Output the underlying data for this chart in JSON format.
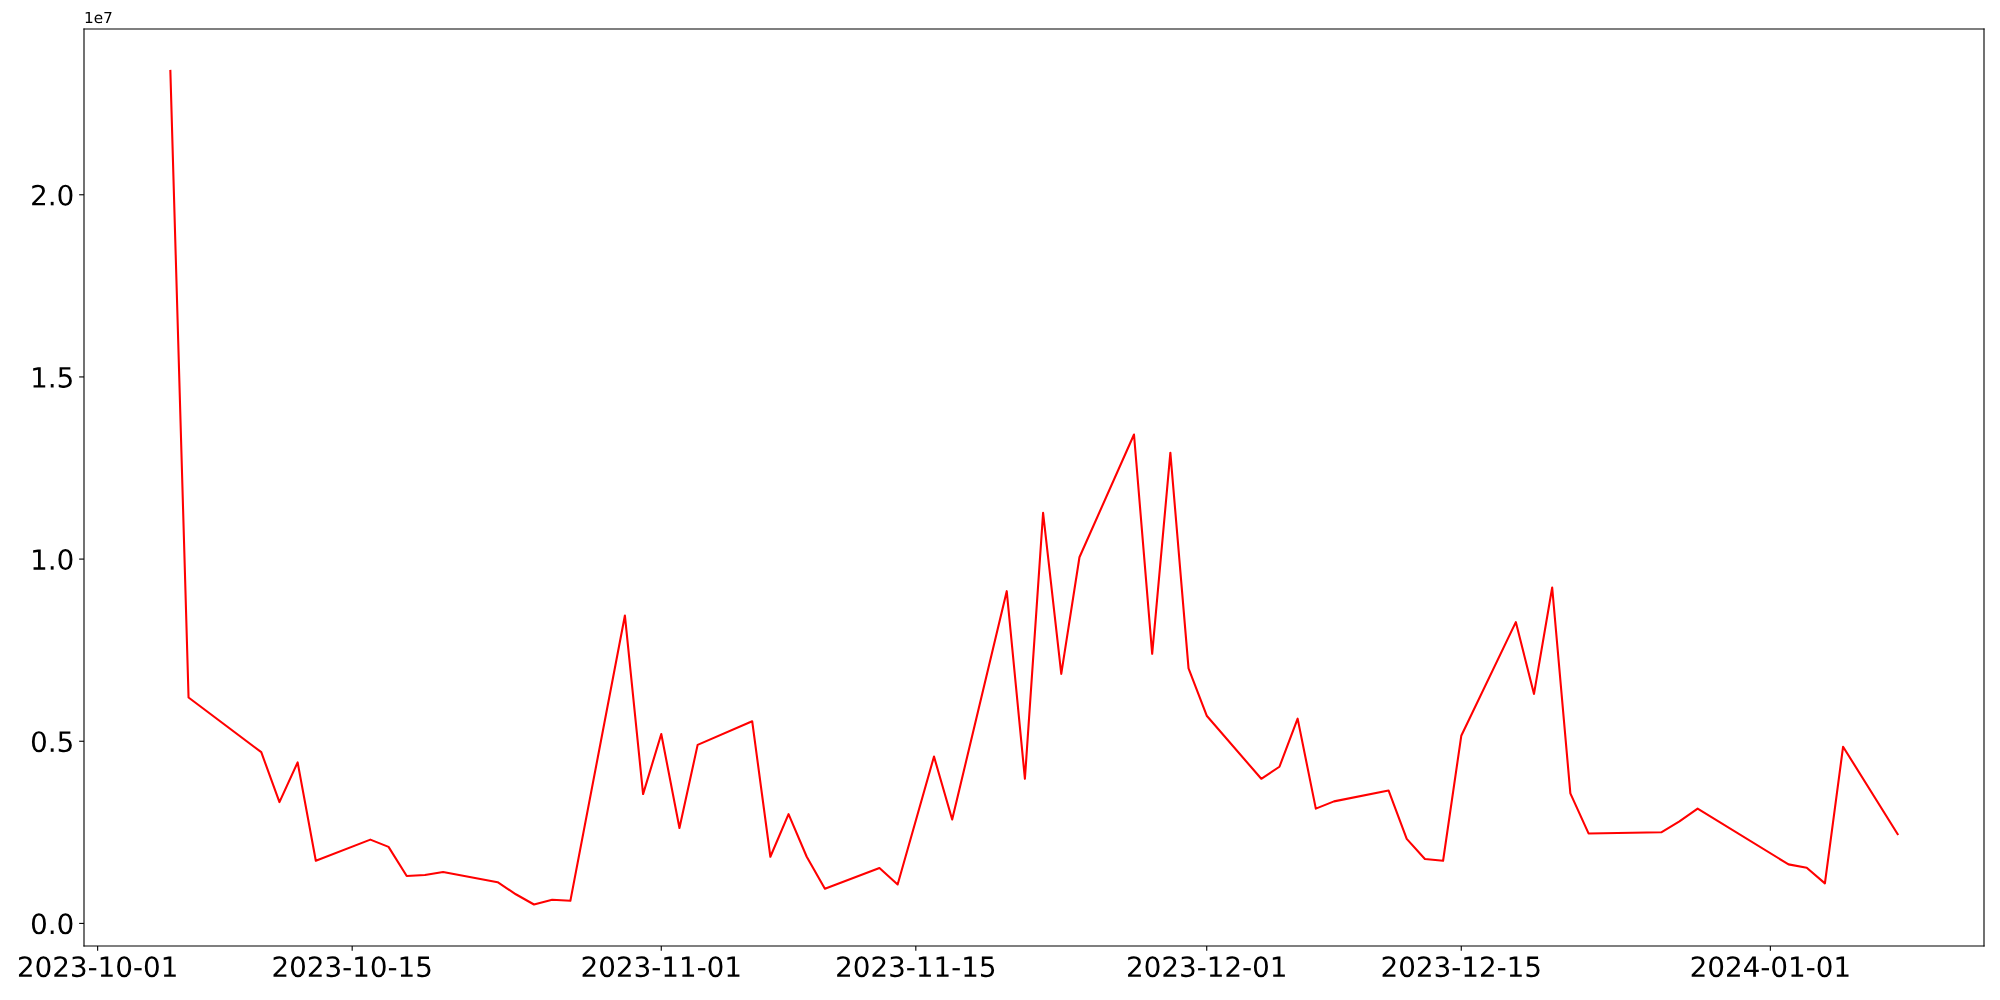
{
  "chart_data": {
    "type": "line",
    "color": "#ff0000",
    "x": [
      "2023-10-05",
      "2023-10-06",
      "2023-10-10",
      "2023-10-11",
      "2023-10-12",
      "2023-10-13",
      "2023-10-16",
      "2023-10-17",
      "2023-10-18",
      "2023-10-19",
      "2023-10-20",
      "2023-10-23",
      "2023-10-24",
      "2023-10-25",
      "2023-10-26",
      "2023-10-27",
      "2023-10-30",
      "2023-10-31",
      "2023-11-01",
      "2023-11-02",
      "2023-11-03",
      "2023-11-06",
      "2023-11-07",
      "2023-11-08",
      "2023-11-09",
      "2023-11-10",
      "2023-11-13",
      "2023-11-14",
      "2023-11-16",
      "2023-11-17",
      "2023-11-20",
      "2023-11-21",
      "2023-11-22",
      "2023-11-23",
      "2023-11-24",
      "2023-11-27",
      "2023-11-28",
      "2023-11-29",
      "2023-11-30",
      "2023-12-01",
      "2023-12-04",
      "2023-12-05",
      "2023-12-06",
      "2023-12-07",
      "2023-12-08",
      "2023-12-11",
      "2023-12-12",
      "2023-12-13",
      "2023-12-14",
      "2023-12-15",
      "2023-12-18",
      "2023-12-19",
      "2023-12-20",
      "2023-12-21",
      "2023-12-22",
      "2023-12-26",
      "2023-12-27",
      "2023-12-28",
      "2024-01-02",
      "2024-01-03",
      "2024-01-04",
      "2024-01-05",
      "2024-01-08"
    ],
    "values": [
      2.34,
      0.62,
      0.47,
      0.333,
      0.442,
      0.172,
      0.23,
      0.21,
      0.13,
      0.133,
      0.141,
      0.113,
      0.08,
      0.052,
      0.065,
      0.062,
      0.845,
      0.355,
      0.52,
      0.262,
      0.49,
      0.555,
      0.183,
      0.3,
      0.183,
      0.095,
      0.152,
      0.107,
      0.458,
      0.285,
      0.912,
      0.397,
      1.127,
      0.685,
      1.005,
      1.342,
      0.74,
      1.292,
      0.7,
      0.57,
      0.397,
      0.43,
      0.562,
      0.315,
      0.335,
      0.365,
      0.232,
      0.177,
      0.172,
      0.515,
      0.827,
      0.63,
      0.922,
      0.357,
      0.247,
      0.25,
      0.28,
      0.315,
      0.162,
      0.153,
      0.11,
      0.485,
      0.245
    ],
    "xlim": [
      "2023-09-30T06:00",
      "2024-01-12T18:00"
    ],
    "xticks": [
      {
        "value": "2023-10-01",
        "label": "2023-10-01"
      },
      {
        "value": "2023-10-15",
        "label": "2023-10-15"
      },
      {
        "value": "2023-11-01",
        "label": "2023-11-01"
      },
      {
        "value": "2023-11-15",
        "label": "2023-11-15"
      },
      {
        "value": "2023-12-01",
        "label": "2023-12-01"
      },
      {
        "value": "2023-12-15",
        "label": "2023-12-15"
      },
      {
        "value": "2024-01-01",
        "label": "2024-01-01"
      }
    ],
    "ylim": [
      -0.062,
      2.455
    ],
    "yticks": [
      {
        "value": 0,
        "label": "0.0"
      },
      {
        "value": 0.5,
        "label": "0.5"
      },
      {
        "value": 1.0,
        "label": "1.0"
      },
      {
        "value": 1.5,
        "label": "1.5"
      },
      {
        "value": 2.0,
        "label": "2.0"
      }
    ],
    "annotations": [
      "1e7"
    ],
    "grid": false,
    "marker": "none",
    "line_style": "solid"
  }
}
